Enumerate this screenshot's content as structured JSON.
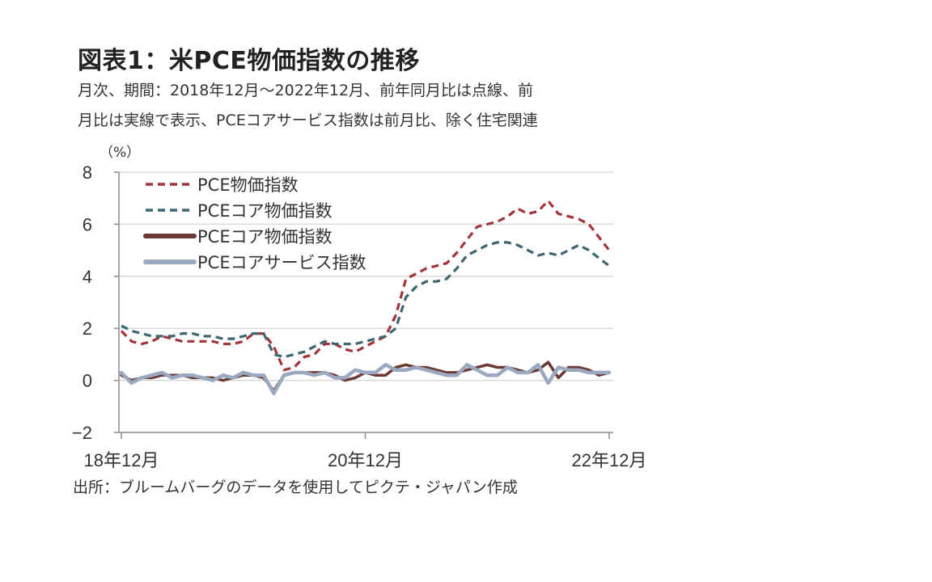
{
  "title": "図表1：米PCE物価指数の推移",
  "subtitle_line1": "月次、期間：2018年12月～2022年12月、前年同月比は点線、前",
  "subtitle_line2": "月比は実線で表示、PCEコアサービス指数は前月比、除く住宅関連",
  "source": "出所：ブルームバーグのデータを使用してピクテ・ジャパン作成",
  "chart_data": {
    "type": "line",
    "unit_label": "（%）",
    "ylim": [
      -2,
      8
    ],
    "y_ticks": [
      "−2",
      "0",
      "2",
      "4",
      "6",
      "8"
    ],
    "y_tick_values": [
      -2,
      0,
      2,
      4,
      6,
      8
    ],
    "x_tick_labels": [
      "18年12月",
      "20年12月",
      "22年12月"
    ],
    "x_tick_index": [
      0,
      24,
      48
    ],
    "grid": true,
    "legend_position": "top-left",
    "series": [
      {
        "name": "PCE物価指数",
        "style": "dashed",
        "color": "#a0353c",
        "values": [
          1.9,
          1.5,
          1.4,
          1.5,
          1.7,
          1.6,
          1.5,
          1.5,
          1.5,
          1.5,
          1.4,
          1.4,
          1.5,
          1.8,
          1.8,
          1.3,
          0.4,
          0.5,
          0.9,
          1.0,
          1.4,
          1.4,
          1.2,
          1.1,
          1.3,
          1.5,
          1.7,
          2.5,
          3.9,
          4.1,
          4.3,
          4.4,
          4.5,
          4.9,
          5.4,
          5.9,
          6.0,
          6.1,
          6.3,
          6.6,
          6.4,
          6.5,
          6.9,
          6.4,
          6.3,
          6.2,
          6.0,
          5.5,
          5.0
        ]
      },
      {
        "name": "PCEコア物価指数",
        "style": "dashed",
        "color": "#3d6670",
        "values": [
          2.1,
          1.9,
          1.8,
          1.7,
          1.7,
          1.7,
          1.8,
          1.8,
          1.7,
          1.7,
          1.6,
          1.6,
          1.7,
          1.8,
          1.8,
          1.0,
          0.9,
          1.0,
          1.1,
          1.3,
          1.5,
          1.4,
          1.4,
          1.4,
          1.5,
          1.6,
          1.7,
          2.0,
          3.2,
          3.6,
          3.8,
          3.8,
          3.9,
          4.3,
          4.8,
          5.0,
          5.2,
          5.3,
          5.3,
          5.2,
          5.0,
          4.8,
          4.9,
          4.8,
          5.0,
          5.2,
          5.0,
          4.7,
          4.4
        ]
      },
      {
        "name": "PCEコア物価指数",
        "style": "solid",
        "color": "#6b3a34",
        "values": [
          0.2,
          0.0,
          0.1,
          0.1,
          0.2,
          0.2,
          0.2,
          0.1,
          0.1,
          0.1,
          0.0,
          0.1,
          0.2,
          0.2,
          0.1,
          -0.4,
          0.2,
          0.3,
          0.3,
          0.3,
          0.3,
          0.2,
          0.0,
          0.1,
          0.3,
          0.2,
          0.2,
          0.5,
          0.6,
          0.5,
          0.5,
          0.4,
          0.3,
          0.3,
          0.4,
          0.5,
          0.6,
          0.5,
          0.5,
          0.4,
          0.3,
          0.4,
          0.7,
          0.1,
          0.5,
          0.5,
          0.4,
          0.2,
          0.3
        ]
      },
      {
        "name": "PCEコアサービス指数",
        "style": "solid",
        "color": "#9aa9bf",
        "values": [
          0.3,
          -0.1,
          0.1,
          0.2,
          0.3,
          0.1,
          0.2,
          0.2,
          0.1,
          0.0,
          0.2,
          0.1,
          0.3,
          0.2,
          0.2,
          -0.5,
          0.2,
          0.3,
          0.3,
          0.2,
          0.3,
          0.1,
          0.1,
          0.4,
          0.3,
          0.3,
          0.6,
          0.4,
          0.4,
          0.5,
          0.4,
          0.3,
          0.2,
          0.2,
          0.6,
          0.4,
          0.2,
          0.2,
          0.5,
          0.3,
          0.3,
          0.6,
          -0.1,
          0.5,
          0.4,
          0.4,
          0.3,
          0.3,
          0.3
        ]
      }
    ]
  }
}
